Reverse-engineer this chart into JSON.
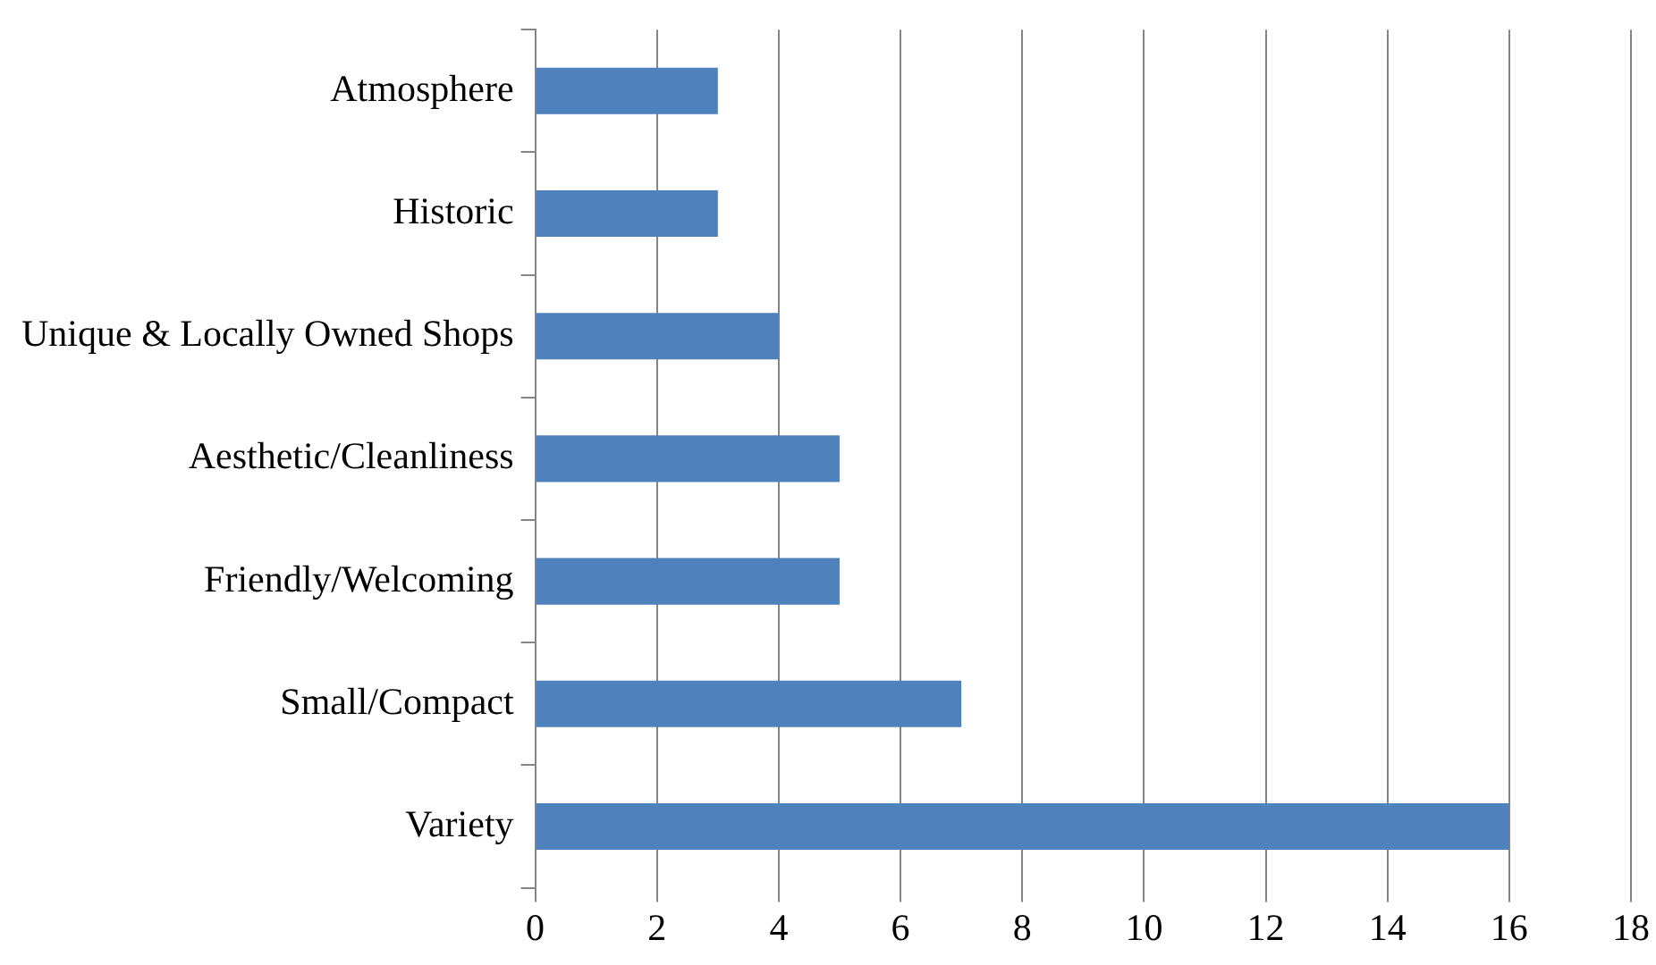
{
  "chart_data": {
    "type": "bar",
    "orientation": "horizontal",
    "categories": [
      "Atmosphere",
      "Historic",
      "Unique & Locally Owned Shops",
      "Aesthetic/Cleanliness",
      "Friendly/Welcoming",
      "Small/Compact",
      "Variety"
    ],
    "values": [
      3,
      3,
      4,
      5,
      5,
      7,
      16
    ],
    "color": "#4f81bd",
    "xlim": [
      0,
      18
    ],
    "xticks": [
      0,
      2,
      4,
      6,
      8,
      10,
      12,
      14,
      16,
      18
    ],
    "grid": "x",
    "legend": false
  }
}
